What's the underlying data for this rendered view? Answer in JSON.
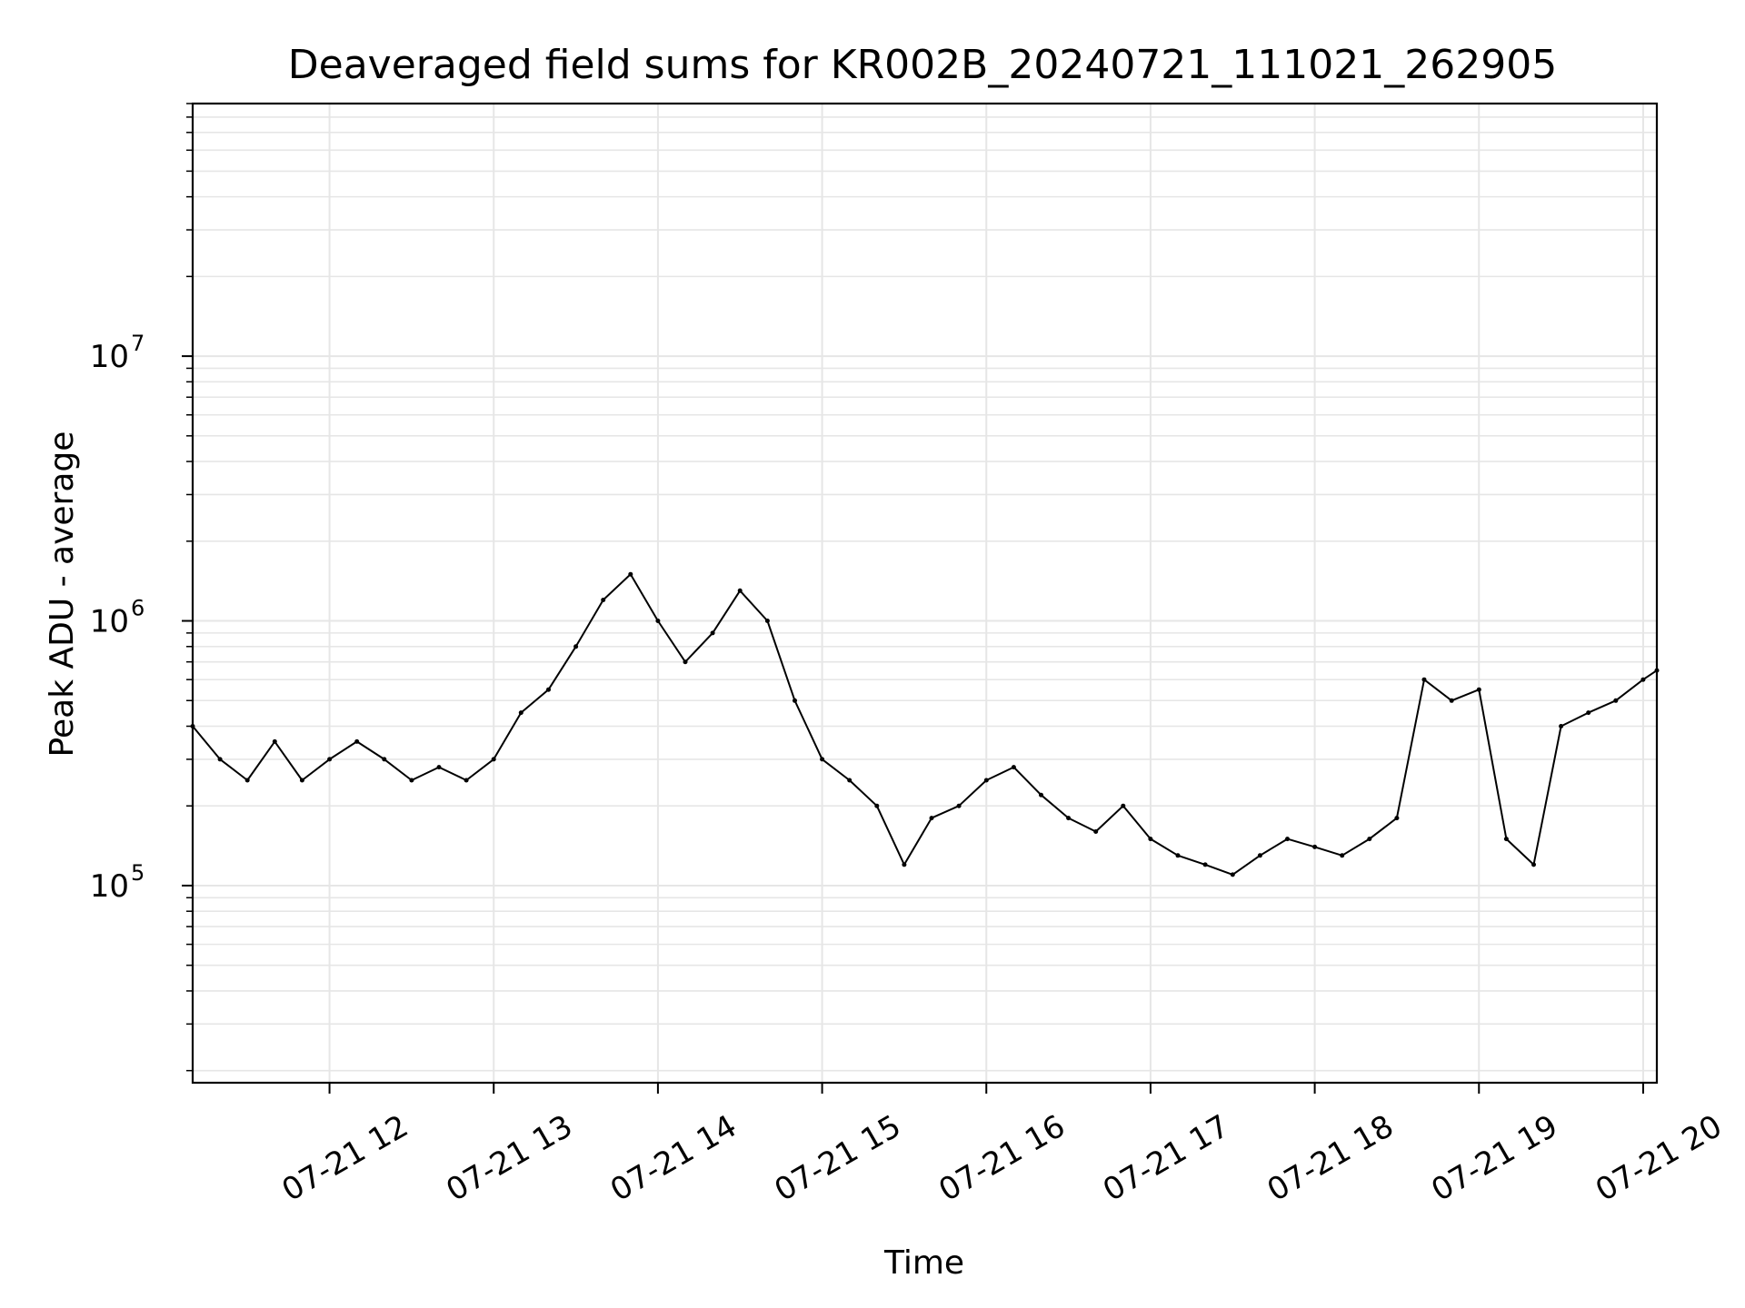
{
  "chart_data": {
    "type": "line",
    "title": "Deaveraged field sums for KR002B_20240721_111021_262905",
    "xlabel": "Time",
    "ylabel": "Peak ADU - average",
    "yscale": "log",
    "grid": true,
    "line_color": "#000000",
    "grid_color": "#e6e6e6",
    "xlim": [
      "2024-07-21 11:10",
      "2024-07-21 20:05"
    ],
    "ylim": [
      18000,
      90000000
    ],
    "x_ticks": [
      {
        "value": "2024-07-21 12:00",
        "label": "07-21 12"
      },
      {
        "value": "2024-07-21 13:00",
        "label": "07-21 13"
      },
      {
        "value": "2024-07-21 14:00",
        "label": "07-21 14"
      },
      {
        "value": "2024-07-21 15:00",
        "label": "07-21 15"
      },
      {
        "value": "2024-07-21 16:00",
        "label": "07-21 16"
      },
      {
        "value": "2024-07-21 17:00",
        "label": "07-21 17"
      },
      {
        "value": "2024-07-21 18:00",
        "label": "07-21 18"
      },
      {
        "value": "2024-07-21 19:00",
        "label": "07-21 19"
      },
      {
        "value": "2024-07-21 20:00",
        "label": "07-21 20"
      }
    ],
    "y_ticks": [
      {
        "value": 100000,
        "base": "10",
        "exp": "5"
      },
      {
        "value": 1000000,
        "base": "10",
        "exp": "6"
      },
      {
        "value": 10000000,
        "base": "10",
        "exp": "7"
      }
    ],
    "series": [
      {
        "x": [
          "2024-07-21 11:10",
          "2024-07-21 11:20",
          "2024-07-21 11:30",
          "2024-07-21 11:40",
          "2024-07-21 11:50",
          "2024-07-21 12:00",
          "2024-07-21 12:10",
          "2024-07-21 12:20",
          "2024-07-21 12:30",
          "2024-07-21 12:40",
          "2024-07-21 12:50",
          "2024-07-21 13:00",
          "2024-07-21 13:10",
          "2024-07-21 13:20",
          "2024-07-21 13:30",
          "2024-07-21 13:40",
          "2024-07-21 13:50",
          "2024-07-21 14:00",
          "2024-07-21 14:10",
          "2024-07-21 14:20",
          "2024-07-21 14:30",
          "2024-07-21 14:40",
          "2024-07-21 14:50",
          "2024-07-21 15:00",
          "2024-07-21 15:10",
          "2024-07-21 15:20",
          "2024-07-21 15:30",
          "2024-07-21 15:40",
          "2024-07-21 15:50",
          "2024-07-21 16:00",
          "2024-07-21 16:10",
          "2024-07-21 16:20",
          "2024-07-21 16:30",
          "2024-07-21 16:40",
          "2024-07-21 16:50",
          "2024-07-21 17:00",
          "2024-07-21 17:10",
          "2024-07-21 17:20",
          "2024-07-21 17:30",
          "2024-07-21 17:40",
          "2024-07-21 17:50",
          "2024-07-21 18:00",
          "2024-07-21 18:10",
          "2024-07-21 18:20",
          "2024-07-21 18:30",
          "2024-07-21 18:40",
          "2024-07-21 18:50",
          "2024-07-21 19:00",
          "2024-07-21 19:10",
          "2024-07-21 19:20",
          "2024-07-21 19:30",
          "2024-07-21 19:40",
          "2024-07-21 19:50",
          "2024-07-21 20:00",
          "2024-07-21 20:05"
        ],
        "y": [
          400000,
          300000,
          250000,
          350000,
          250000,
          300000,
          350000,
          300000,
          250000,
          280000,
          250000,
          300000,
          450000,
          550000,
          800000,
          1200000,
          1500000,
          1000000,
          700000,
          900000,
          1300000,
          1000000,
          500000,
          300000,
          250000,
          200000,
          120000,
          180000,
          200000,
          250000,
          280000,
          220000,
          180000,
          160000,
          200000,
          150000,
          130000,
          120000,
          110000,
          130000,
          150000,
          140000,
          130000,
          150000,
          180000,
          600000,
          500000,
          550000,
          150000,
          120000,
          400000,
          450000,
          500000,
          600000,
          650000
        ]
      }
    ]
  }
}
